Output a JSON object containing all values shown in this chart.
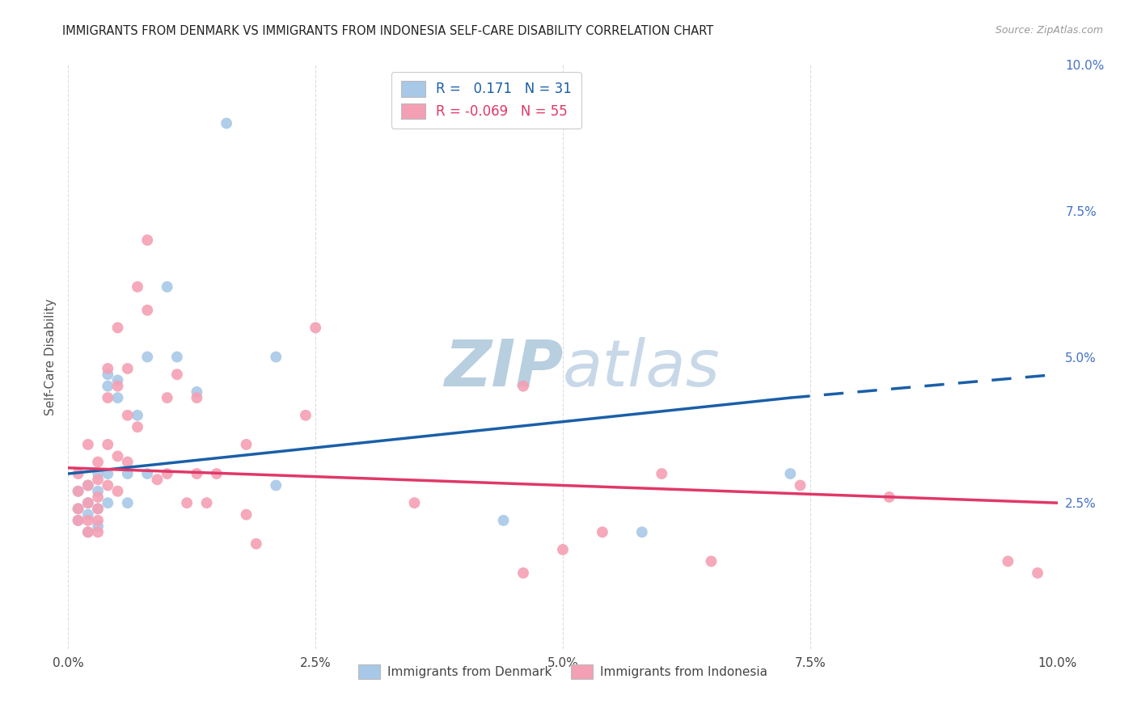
{
  "title": "IMMIGRANTS FROM DENMARK VS IMMIGRANTS FROM INDONESIA SELF-CARE DISABILITY CORRELATION CHART",
  "source": "Source: ZipAtlas.com",
  "ylabel": "Self-Care Disability",
  "xlim": [
    0.0,
    0.1
  ],
  "ylim": [
    0.0,
    0.1
  ],
  "xtick_labels": [
    "0.0%",
    "2.5%",
    "5.0%",
    "7.5%",
    "10.0%"
  ],
  "xtick_vals": [
    0.0,
    0.025,
    0.05,
    0.075,
    0.1
  ],
  "ytick_labels_right": [
    "10.0%",
    "7.5%",
    "5.0%",
    "2.5%"
  ],
  "ytick_vals_right": [
    0.1,
    0.075,
    0.05,
    0.025
  ],
  "color_denmark": "#a8c8e8",
  "color_indonesia": "#f4a0b4",
  "line_color_denmark": "#1a5fa8",
  "line_color_indonesia": "#e03868",
  "R_denmark": 0.171,
  "N_denmark": 31,
  "R_indonesia": -0.069,
  "N_indonesia": 55,
  "dk_line_x0": 0.0,
  "dk_line_y0": 0.03,
  "dk_line_x1": 0.073,
  "dk_line_y1": 0.043,
  "dk_line_x1_dash": 0.1,
  "dk_line_y1_dash": 0.047,
  "id_line_x0": 0.0,
  "id_line_y0": 0.031,
  "id_line_x1": 0.1,
  "id_line_y1": 0.025,
  "denmark_x": [
    0.001,
    0.001,
    0.001,
    0.002,
    0.002,
    0.002,
    0.002,
    0.003,
    0.003,
    0.003,
    0.003,
    0.004,
    0.004,
    0.004,
    0.004,
    0.005,
    0.005,
    0.006,
    0.006,
    0.007,
    0.008,
    0.008,
    0.01,
    0.011,
    0.013,
    0.016,
    0.021,
    0.021,
    0.044,
    0.058,
    0.073
  ],
  "denmark_y": [
    0.027,
    0.024,
    0.022,
    0.028,
    0.025,
    0.023,
    0.02,
    0.03,
    0.027,
    0.024,
    0.021,
    0.047,
    0.045,
    0.03,
    0.025,
    0.046,
    0.043,
    0.03,
    0.025,
    0.04,
    0.05,
    0.03,
    0.062,
    0.05,
    0.044,
    0.09,
    0.05,
    0.028,
    0.022,
    0.02,
    0.03
  ],
  "indonesia_x": [
    0.001,
    0.001,
    0.001,
    0.001,
    0.002,
    0.002,
    0.002,
    0.002,
    0.002,
    0.003,
    0.003,
    0.003,
    0.003,
    0.003,
    0.003,
    0.004,
    0.004,
    0.004,
    0.004,
    0.005,
    0.005,
    0.005,
    0.005,
    0.006,
    0.006,
    0.006,
    0.007,
    0.007,
    0.008,
    0.008,
    0.009,
    0.01,
    0.01,
    0.011,
    0.012,
    0.013,
    0.013,
    0.014,
    0.015,
    0.018,
    0.018,
    0.019,
    0.024,
    0.025,
    0.035,
    0.046,
    0.046,
    0.05,
    0.054,
    0.06,
    0.065,
    0.074,
    0.083,
    0.095,
    0.098
  ],
  "indonesia_y": [
    0.03,
    0.027,
    0.024,
    0.022,
    0.035,
    0.028,
    0.025,
    0.022,
    0.02,
    0.032,
    0.029,
    0.026,
    0.024,
    0.022,
    0.02,
    0.048,
    0.043,
    0.035,
    0.028,
    0.055,
    0.045,
    0.033,
    0.027,
    0.048,
    0.04,
    0.032,
    0.062,
    0.038,
    0.07,
    0.058,
    0.029,
    0.043,
    0.03,
    0.047,
    0.025,
    0.043,
    0.03,
    0.025,
    0.03,
    0.035,
    0.023,
    0.018,
    0.04,
    0.055,
    0.025,
    0.045,
    0.013,
    0.017,
    0.02,
    0.03,
    0.015,
    0.028,
    0.026,
    0.015,
    0.013
  ],
  "background_color": "#ffffff",
  "grid_color": "#dddddd",
  "watermark_color": "#ccd8e8",
  "watermark_fontsize": 58
}
